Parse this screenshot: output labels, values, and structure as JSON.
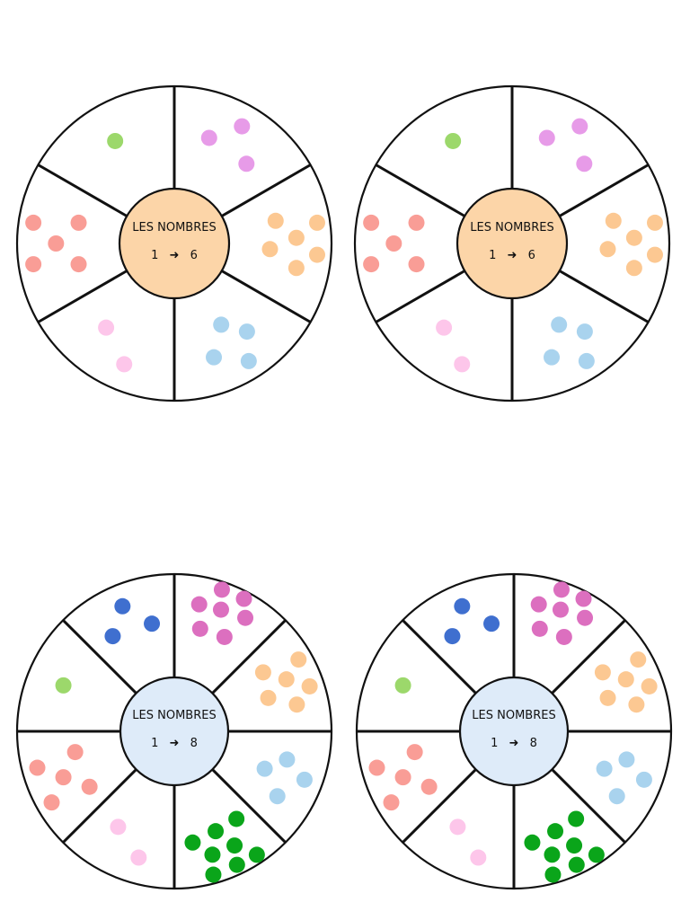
{
  "colors": {
    "outline": "#111111",
    "hub6": "#fcd5a8",
    "hub8": "#deebf9"
  },
  "wheels": [
    {
      "id": "wheel-6-a",
      "hub_color": "#fcd5a8",
      "title": "LES NOMBRES",
      "range_start": "1",
      "arrow": "➜",
      "range_end": "6",
      "dividers_deg": [
        90,
        30,
        330,
        270,
        210,
        150
      ],
      "sectors": [
        {
          "count": 3,
          "color": "#e79be8"
        },
        {
          "count": 6,
          "color": "#fcc892"
        },
        {
          "count": 4,
          "color": "#a9d3ee"
        },
        {
          "count": 2,
          "color": "#fdc6ea"
        },
        {
          "count": 5,
          "color": "#f99d96"
        },
        {
          "count": 1,
          "color": "#9cd86b"
        }
      ]
    },
    {
      "id": "wheel-6-b",
      "hub_color": "#fcd5a8",
      "title": "LES NOMBRES",
      "range_start": "1",
      "arrow": "➜",
      "range_end": "6",
      "dividers_deg": [
        90,
        30,
        330,
        270,
        210,
        150
      ],
      "sectors": [
        {
          "count": 3,
          "color": "#e79be8"
        },
        {
          "count": 6,
          "color": "#fcc892"
        },
        {
          "count": 4,
          "color": "#a9d3ee"
        },
        {
          "count": 2,
          "color": "#fdc6ea"
        },
        {
          "count": 5,
          "color": "#f99d96"
        },
        {
          "count": 1,
          "color": "#9cd86b"
        }
      ]
    },
    {
      "id": "wheel-8-a",
      "hub_color": "#deebf9",
      "title": "LES NOMBRES",
      "range_start": "1",
      "arrow": "➜",
      "range_end": "8",
      "dividers_deg": [
        90,
        45,
        0,
        315,
        270,
        225,
        180,
        135
      ],
      "sectors": [
        {
          "count": 7,
          "color": "#dc6fbf"
        },
        {
          "count": 6,
          "color": "#fcc892"
        },
        {
          "count": 4,
          "color": "#a9d3ee"
        },
        {
          "count": 8,
          "color": "#0aa51a"
        },
        {
          "count": 2,
          "color": "#fdc6ea"
        },
        {
          "count": 5,
          "color": "#f99d96"
        },
        {
          "count": 1,
          "color": "#9cd86b"
        },
        {
          "count": 3,
          "color": "#3f6fcf"
        }
      ]
    },
    {
      "id": "wheel-8-b",
      "hub_color": "#deebf9",
      "title": "LES NOMBRES",
      "range_start": "1",
      "arrow": "➜",
      "range_end": "8",
      "dividers_deg": [
        90,
        45,
        0,
        315,
        270,
        225,
        180,
        135
      ],
      "sectors": [
        {
          "count": 7,
          "color": "#dc6fbf"
        },
        {
          "count": 6,
          "color": "#fcc892"
        },
        {
          "count": 4,
          "color": "#a9d3ee"
        },
        {
          "count": 8,
          "color": "#0aa51a"
        },
        {
          "count": 2,
          "color": "#fdc6ea"
        },
        {
          "count": 5,
          "color": "#f99d96"
        },
        {
          "count": 1,
          "color": "#9cd86b"
        },
        {
          "count": 3,
          "color": "#3f6fcf"
        }
      ]
    }
  ]
}
